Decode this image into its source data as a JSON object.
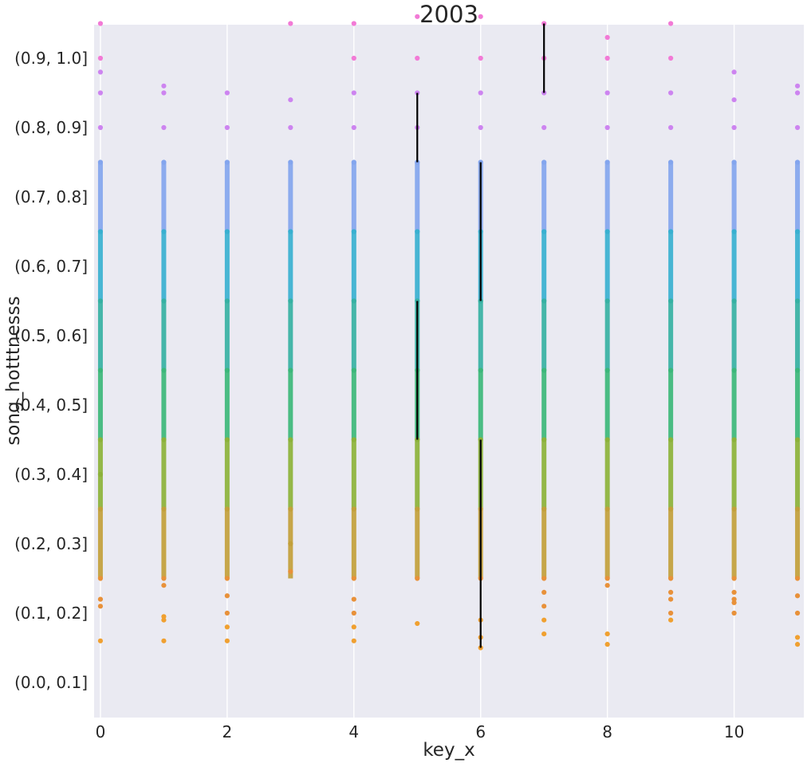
{
  "chart_data": {
    "type": "scatter",
    "title": "2003",
    "xlabel": "key_x",
    "ylabel": "song_hotttnesss",
    "xlim": [
      -0.1,
      11.1
    ],
    "x_ticks": [
      0,
      2,
      4,
      6,
      8,
      10
    ],
    "y_categories": [
      "(0.0, 0.1]",
      "(0.1, 0.2]",
      "(0.2, 0.3]",
      "(0.3, 0.4]",
      "(0.4, 0.5]",
      "(0.5, 0.6]",
      "(0.6, 0.7]",
      "(0.7, 0.8]",
      "(0.8, 0.9]",
      "(0.9, 1.0]"
    ],
    "grid": true,
    "legend": "none",
    "background": "#eaeaf2",
    "category_colors": [
      "#f0a030",
      "#e8913a",
      "#c2a03b",
      "#8cb23a",
      "#3cb77a",
      "#36b1a3",
      "#38b0d0",
      "#83a5ee",
      "#cd84f0",
      "#f27ad6"
    ],
    "series": [
      {
        "x": 0,
        "hotttnesss": [
          0.06,
          0.11,
          0.12,
          0.15,
          0.25,
          0.3,
          0.35,
          0.45,
          0.55,
          0.65,
          0.75,
          0.8,
          0.85,
          0.88,
          0.9,
          0.95,
          0.99
        ]
      },
      {
        "x": 1,
        "hotttnesss": [
          0.06,
          0.09,
          0.095,
          0.14,
          0.15,
          0.25,
          0.35,
          0.45,
          0.55,
          0.65,
          0.75,
          0.8,
          0.85,
          0.86
        ]
      },
      {
        "x": 2,
        "hotttnesss": [
          0.06,
          0.08,
          0.1,
          0.125,
          0.15,
          0.25,
          0.35,
          0.45,
          0.55,
          0.65,
          0.75,
          0.8,
          0.85,
          1.02
        ]
      },
      {
        "x": 3,
        "hotttnesss": [
          0.16,
          0.2,
          0.25,
          0.35,
          0.45,
          0.55,
          0.65,
          0.75,
          0.8,
          0.84,
          0.95,
          1.02
        ]
      },
      {
        "x": 4,
        "hotttnesss": [
          0.06,
          0.08,
          0.1,
          0.12,
          0.15,
          0.25,
          0.35,
          0.45,
          0.55,
          0.65,
          0.75,
          0.8,
          0.85,
          0.9,
          0.95,
          1.0
        ]
      },
      {
        "x": 5,
        "hotttnesss": [
          0.085,
          0.15,
          0.25,
          0.35,
          0.45,
          0.55,
          0.65,
          0.75,
          0.8,
          0.85,
          0.9,
          0.96
        ]
      },
      {
        "x": 6,
        "hotttnesss": [
          0.05,
          0.065,
          0.09,
          0.15,
          0.25,
          0.35,
          0.45,
          0.55,
          0.65,
          0.75,
          0.8,
          0.85,
          0.9,
          0.96
        ]
      },
      {
        "x": 7,
        "hotttnesss": [
          0.07,
          0.09,
          0.11,
          0.13,
          0.15,
          0.25,
          0.35,
          0.45,
          0.55,
          0.65,
          0.75,
          0.8,
          0.85,
          0.9,
          0.95,
          1.0
        ]
      },
      {
        "x": 8,
        "hotttnesss": [
          0.055,
          0.07,
          0.14,
          0.15,
          0.25,
          0.35,
          0.45,
          0.55,
          0.65,
          0.75,
          0.8,
          0.85,
          0.9,
          0.93,
          0.99
        ]
      },
      {
        "x": 9,
        "hotttnesss": [
          0.09,
          0.1,
          0.12,
          0.13,
          0.15,
          0.25,
          0.35,
          0.45,
          0.55,
          0.65,
          0.75,
          0.8,
          0.85,
          0.9,
          0.95,
          1.0
        ]
      },
      {
        "x": 10,
        "hotttnesss": [
          0.1,
          0.115,
          0.12,
          0.13,
          0.15,
          0.25,
          0.35,
          0.45,
          0.55,
          0.65,
          0.75,
          0.8,
          0.84,
          0.88
        ]
      },
      {
        "x": 11,
        "hotttnesss": [
          0.055,
          0.065,
          0.1,
          0.125,
          0.15,
          0.25,
          0.35,
          0.45,
          0.55,
          0.65,
          0.75,
          0.8,
          0.85,
          0.86
        ]
      }
    ],
    "error_bars": [
      {
        "x": 5,
        "low": 0.75,
        "high": 0.85,
        "color": "#000000"
      },
      {
        "x": 5,
        "low": 0.35,
        "high": 0.55,
        "color": "#000000"
      },
      {
        "x": 6,
        "low": 0.55,
        "high": 0.75,
        "color": "#000000"
      },
      {
        "x": 6,
        "low": 0.05,
        "high": 0.35,
        "color": "#000000"
      },
      {
        "x": 7,
        "low": 0.85,
        "high": 0.95,
        "color": "#000000"
      }
    ]
  }
}
